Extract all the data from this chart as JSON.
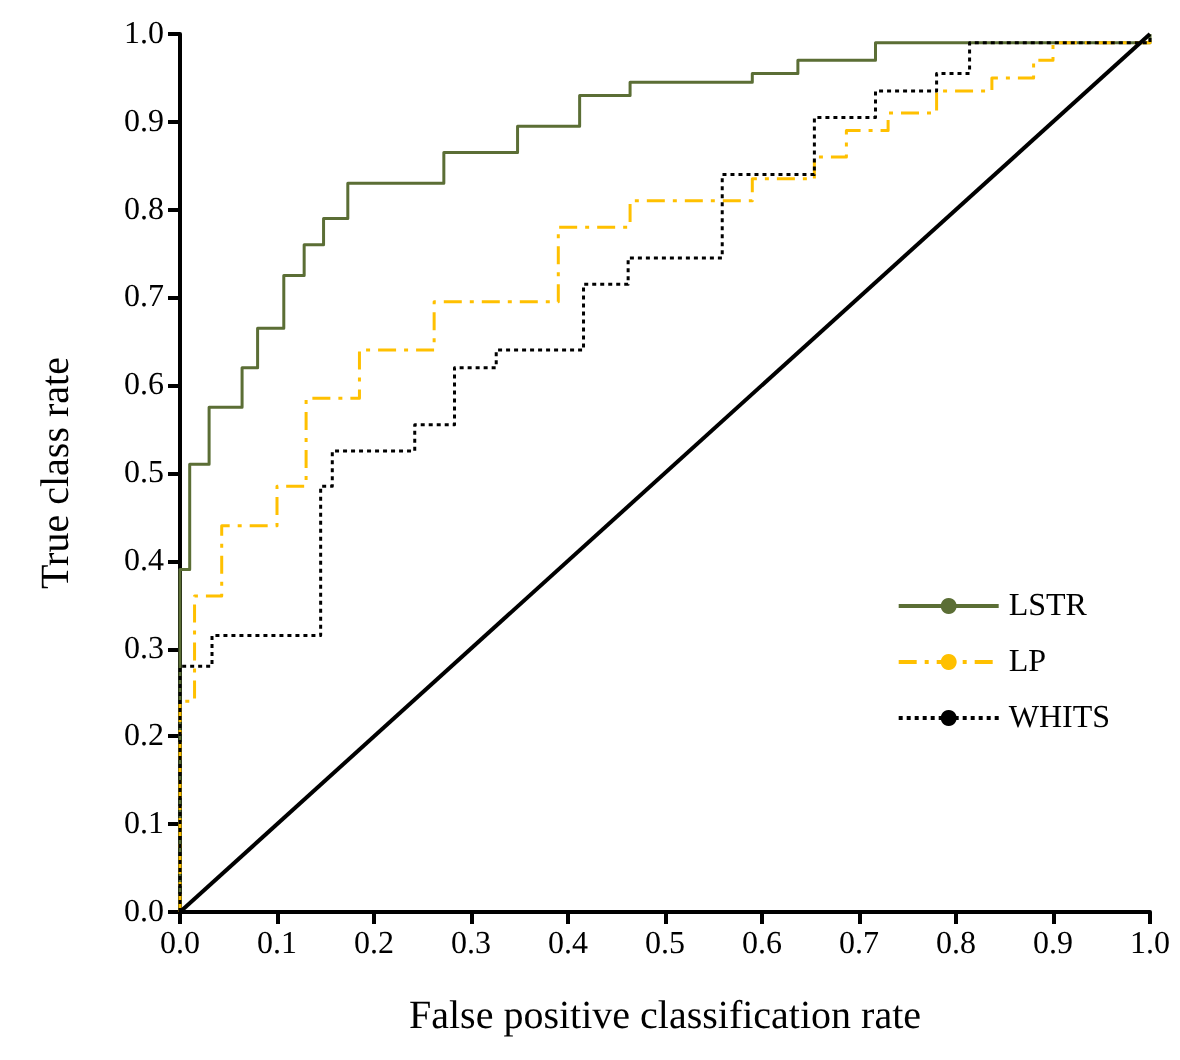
{
  "chart_data": {
    "type": "step",
    "xlabel": "False positive classification rate",
    "ylabel": "True class rate",
    "xlim": [
      0,
      1
    ],
    "ylim": [
      0,
      1
    ],
    "xticks": [
      {
        "value": 0,
        "label": "0.0"
      },
      0.1,
      0.2,
      0.3,
      0.4,
      0.5,
      0.6,
      0.7,
      0.8,
      0.9,
      {
        "value": 1,
        "label": "1.0"
      }
    ],
    "yticks": [
      {
        "value": 0,
        "label": "0.0"
      },
      0.1,
      0.2,
      0.3,
      0.4,
      0.5,
      0.6,
      0.7,
      0.8,
      0.9,
      {
        "value": 1,
        "label": "1.0"
      }
    ],
    "grid": false,
    "legend": "right",
    "marker": "none",
    "series": [
      {
        "name": "LSTR",
        "color": "#5b6e35",
        "line_style": "solid",
        "x": [
          0,
          0,
          0.01,
          0.03,
          0.064,
          0.08,
          0.107,
          0.128,
          0.148,
          0.173,
          0.272,
          0.348,
          0.412,
          0.464,
          0.59,
          0.637,
          0.717,
          1,
          1
        ],
        "values": [
          0,
          0.39,
          0.51,
          0.575,
          0.62,
          0.665,
          0.725,
          0.76,
          0.79,
          0.83,
          0.865,
          0.895,
          0.93,
          0.945,
          0.955,
          0.97,
          0.99,
          0.99,
          1
        ]
      },
      {
        "name": "LP",
        "color": "#ffc000",
        "line_style": "dashed",
        "x": [
          0,
          0,
          0.015,
          0.043,
          0.1,
          0.13,
          0.185,
          0.262,
          0.39,
          0.464,
          0.59,
          0.654,
          0.687,
          0.73,
          0.78,
          0.837,
          0.88,
          0.9,
          1
        ],
        "values": [
          0,
          0.24,
          0.36,
          0.44,
          0.485,
          0.585,
          0.64,
          0.695,
          0.78,
          0.81,
          0.835,
          0.86,
          0.89,
          0.91,
          0.935,
          0.95,
          0.97,
          0.99,
          1
        ]
      },
      {
        "name": "WHITS",
        "color": "#000000",
        "line_style": "dotted",
        "x": [
          0,
          0,
          0.033,
          0.145,
          0.157,
          0.242,
          0.283,
          0.326,
          0.416,
          0.462,
          0.559,
          0.654,
          0.717,
          0.78,
          0.814,
          1
        ],
        "values": [
          0,
          0.28,
          0.315,
          0.485,
          0.525,
          0.555,
          0.62,
          0.64,
          0.715,
          0.745,
          0.84,
          0.905,
          0.935,
          0.955,
          0.99,
          1
        ]
      },
      {
        "type": "line",
        "color": "#000000",
        "line_style": "solid",
        "x": [
          0,
          1
        ],
        "values": [
          0,
          1
        ]
      }
    ]
  }
}
